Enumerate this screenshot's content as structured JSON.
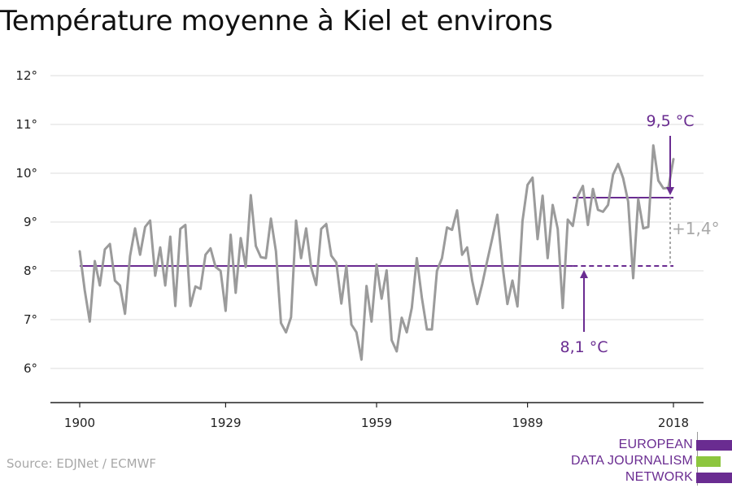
{
  "title": "Température moyenne à Kiel et environs",
  "source": "Source: EDJNet / ECMWF",
  "logo": {
    "lines": [
      "EUROPEAN",
      "DATA JOURNALISM",
      "NETWORK"
    ],
    "colors": [
      "#6a2c91",
      "#8dc63f",
      "#6a2c91"
    ]
  },
  "colors": {
    "series": "#9b9b9b",
    "accent": "#6a2c91",
    "diff": "#a8a8a8",
    "grid": "#dcdcdc"
  },
  "chart_data": {
    "type": "line",
    "title": "Température moyenne à Kiel et environs",
    "x_ticks": [
      "1900",
      "1929",
      "1959",
      "1989",
      "2018"
    ],
    "y_ticks": [
      "6°",
      "7°",
      "8°",
      "9°",
      "10°",
      "11°",
      "12°"
    ],
    "ylim": [
      5.3,
      12.3
    ],
    "xlim": [
      1896,
      2022
    ],
    "grid": true,
    "series": [
      {
        "values": [
          [
            1900,
            8.4
          ],
          [
            1901,
            7.6
          ],
          [
            1902,
            6.96
          ],
          [
            1903,
            8.2
          ],
          [
            1904,
            7.7
          ],
          [
            1905,
            8.44
          ],
          [
            1906,
            8.55
          ],
          [
            1907,
            7.8
          ],
          [
            1908,
            7.7
          ],
          [
            1909,
            7.12
          ],
          [
            1910,
            8.3
          ],
          [
            1911,
            8.87
          ],
          [
            1912,
            8.33
          ],
          [
            1913,
            8.9
          ],
          [
            1914,
            9.03
          ],
          [
            1915,
            7.9
          ],
          [
            1916,
            8.48
          ],
          [
            1917,
            7.7
          ],
          [
            1918,
            8.7
          ],
          [
            1919,
            7.28
          ],
          [
            1920,
            8.86
          ],
          [
            1921,
            8.94
          ],
          [
            1922,
            7.28
          ],
          [
            1923,
            7.68
          ],
          [
            1924,
            7.63
          ],
          [
            1925,
            8.33
          ],
          [
            1926,
            8.46
          ],
          [
            1927,
            8.08
          ],
          [
            1928,
            8.0
          ],
          [
            1929,
            7.18
          ],
          [
            1930,
            8.74
          ],
          [
            1931,
            7.55
          ],
          [
            1932,
            8.67
          ],
          [
            1933,
            8.08
          ],
          [
            1934,
            9.55
          ],
          [
            1935,
            8.51
          ],
          [
            1936,
            8.28
          ],
          [
            1937,
            8.26
          ],
          [
            1938,
            9.07
          ],
          [
            1939,
            8.4
          ],
          [
            1940,
            6.93
          ],
          [
            1941,
            6.74
          ],
          [
            1942,
            7.05
          ],
          [
            1943,
            9.03
          ],
          [
            1944,
            8.26
          ],
          [
            1945,
            8.87
          ],
          [
            1946,
            8.07
          ],
          [
            1947,
            7.71
          ],
          [
            1948,
            8.86
          ],
          [
            1949,
            8.96
          ],
          [
            1950,
            8.31
          ],
          [
            1951,
            8.17
          ],
          [
            1952,
            7.33
          ],
          [
            1953,
            8.1
          ],
          [
            1954,
            6.9
          ],
          [
            1955,
            6.74
          ],
          [
            1956,
            6.18
          ],
          [
            1957,
            7.69
          ],
          [
            1958,
            6.96
          ],
          [
            1959,
            8.13
          ],
          [
            1960,
            7.43
          ],
          [
            1961,
            8.01
          ],
          [
            1962,
            6.58
          ],
          [
            1963,
            6.35
          ],
          [
            1964,
            7.04
          ],
          [
            1965,
            6.74
          ],
          [
            1966,
            7.24
          ],
          [
            1967,
            8.26
          ],
          [
            1968,
            7.45
          ],
          [
            1969,
            6.8
          ],
          [
            1970,
            6.8
          ],
          [
            1971,
            8.0
          ],
          [
            1972,
            8.26
          ],
          [
            1973,
            8.89
          ],
          [
            1974,
            8.84
          ],
          [
            1975,
            9.24
          ],
          [
            1976,
            8.33
          ],
          [
            1977,
            8.48
          ],
          [
            1978,
            7.8
          ],
          [
            1979,
            7.32
          ],
          [
            1980,
            7.73
          ],
          [
            1981,
            8.21
          ],
          [
            1982,
            8.67
          ],
          [
            1983,
            9.15
          ],
          [
            1984,
            8.13
          ],
          [
            1985,
            7.32
          ],
          [
            1986,
            7.8
          ],
          [
            1987,
            7.27
          ],
          [
            1988,
            9.02
          ],
          [
            1989,
            9.76
          ],
          [
            1990,
            9.91
          ],
          [
            1991,
            8.65
          ],
          [
            1992,
            9.54
          ],
          [
            1993,
            8.26
          ],
          [
            1994,
            9.35
          ],
          [
            1995,
            8.86
          ],
          [
            1996,
            7.24
          ],
          [
            1997,
            9.05
          ],
          [
            1998,
            8.92
          ],
          [
            1999,
            9.53
          ],
          [
            2000,
            9.74
          ],
          [
            2001,
            8.94
          ],
          [
            2002,
            9.68
          ],
          [
            2003,
            9.25
          ],
          [
            2004,
            9.21
          ],
          [
            2005,
            9.35
          ],
          [
            2006,
            9.97
          ],
          [
            2007,
            10.19
          ],
          [
            2008,
            9.9
          ],
          [
            2009,
            9.42
          ],
          [
            2010,
            7.85
          ],
          [
            2011,
            9.47
          ],
          [
            2012,
            8.87
          ],
          [
            2013,
            8.9
          ],
          [
            2014,
            10.57
          ],
          [
            2015,
            9.85
          ],
          [
            2016,
            9.69
          ],
          [
            2017,
            9.7
          ],
          [
            2018,
            10.29
          ]
        ]
      }
    ],
    "annotations": {
      "baseline": {
        "value": 8.1,
        "label": "8,1 °C",
        "from": 1900,
        "to": 2018,
        "solid_to": 1998
      },
      "recent": {
        "value": 9.5,
        "label": "9,5 °C",
        "from": 1998,
        "to": 2018
      },
      "difference": {
        "label": "+1,4°"
      }
    }
  }
}
